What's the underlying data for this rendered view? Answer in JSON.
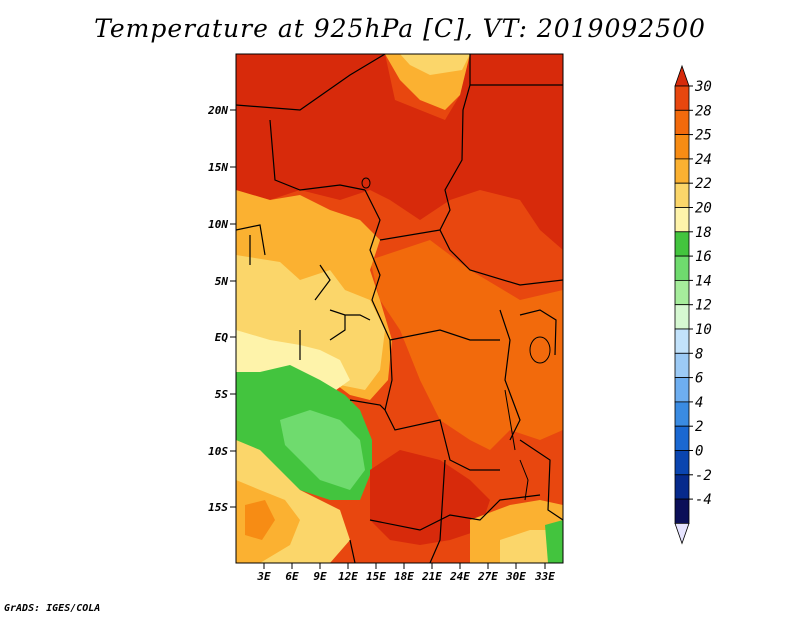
{
  "title": "Temperature at 925hPa [C], VT: 2019092500",
  "credit": "GrADS: IGES/COLA",
  "map": {
    "lon_range": [
      0,
      35
    ],
    "lat_range": [
      -20,
      24
    ],
    "lat_ticks": [
      "20N",
      "15N",
      "10N",
      "5N",
      "EQ",
      "5S",
      "10S",
      "15S"
    ],
    "lon_ticks": [
      "3E",
      "6E",
      "9E",
      "12E",
      "15E",
      "18E",
      "21E",
      "24E",
      "27E",
      "30E",
      "33E"
    ]
  },
  "colorbar": {
    "labels": [
      "30",
      "28",
      "25",
      "24",
      "22",
      "20",
      "18",
      "16",
      "14",
      "12",
      "10",
      "8",
      "6",
      "4",
      "2",
      "0",
      "-2",
      "-4"
    ],
    "colors": [
      "#d72a0b",
      "#e8470f",
      "#f26a0c",
      "#f78c14",
      "#fbb131",
      "#fbd66a",
      "#fef3aa",
      "#43c43e",
      "#6fdb6e",
      "#a6ed9c",
      "#d6f8d2",
      "#c2e2fb",
      "#9ccaf5",
      "#6eaef0",
      "#3a8be2",
      "#1a68d2",
      "#0a45b0",
      "#062a8c",
      "#0b0f58",
      "#e6e4ff"
    ]
  }
}
